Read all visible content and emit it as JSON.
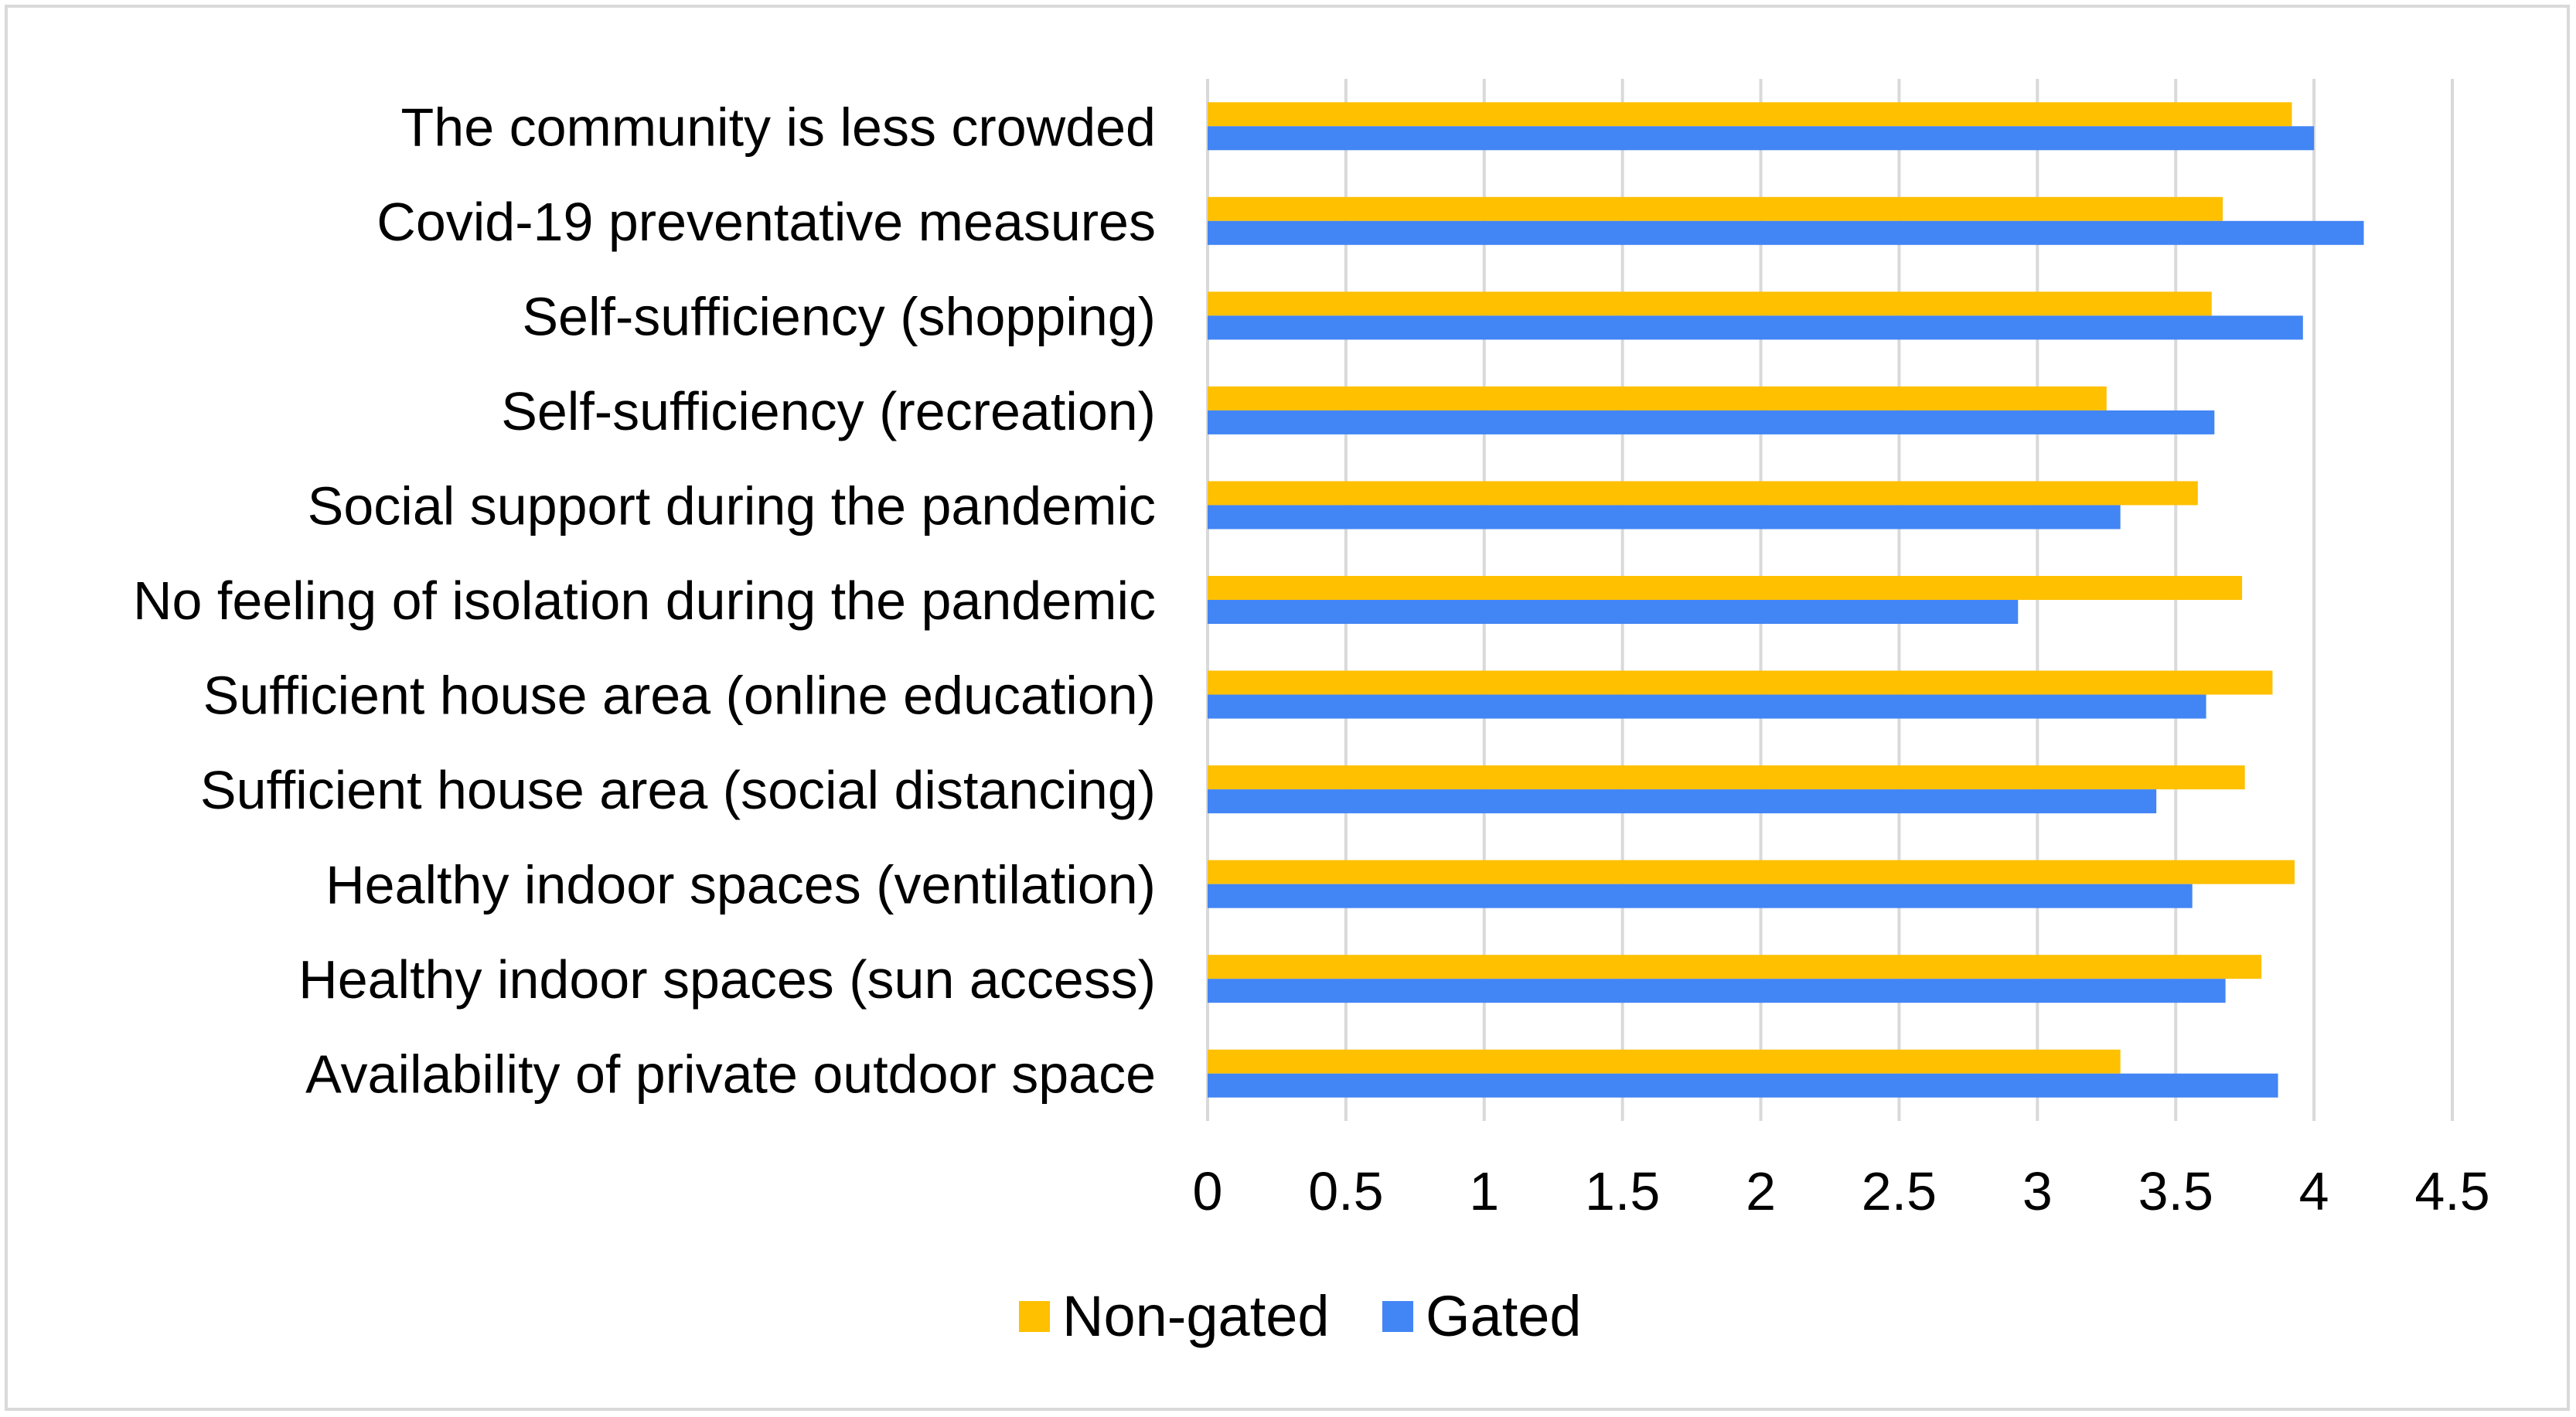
{
  "chart_data": {
    "type": "bar",
    "orientation": "horizontal",
    "categories": [
      "The community is less crowded",
      "Covid-19 preventative measures",
      "Self-sufficiency (shopping)",
      "Self-sufficiency (recreation)",
      "Social support during the pandemic",
      "No feeling of isolation during the pandemic",
      "Sufficient house area (online education)",
      "Sufficient house area (social distancing)",
      "Healthy indoor spaces (ventilation)",
      "Healthy indoor spaces (sun access)",
      "Availability of private outdoor space"
    ],
    "series": [
      {
        "name": "Non-gated",
        "color": "#FFC000",
        "values": [
          3.92,
          3.67,
          3.63,
          3.25,
          3.58,
          3.74,
          3.85,
          3.75,
          3.93,
          3.81,
          3.3
        ]
      },
      {
        "name": "Gated",
        "color": "#4285F4",
        "values": [
          4.0,
          4.18,
          3.96,
          3.64,
          3.3,
          2.93,
          3.61,
          3.43,
          3.56,
          3.68,
          3.87
        ]
      }
    ],
    "xlim": [
      0,
      4.5
    ],
    "xticks": [
      "0",
      "0.5",
      "1",
      "1.5",
      "2",
      "2.5",
      "3",
      "3.5",
      "4",
      "4.5"
    ],
    "grid": true,
    "legend_position": "bottom"
  }
}
